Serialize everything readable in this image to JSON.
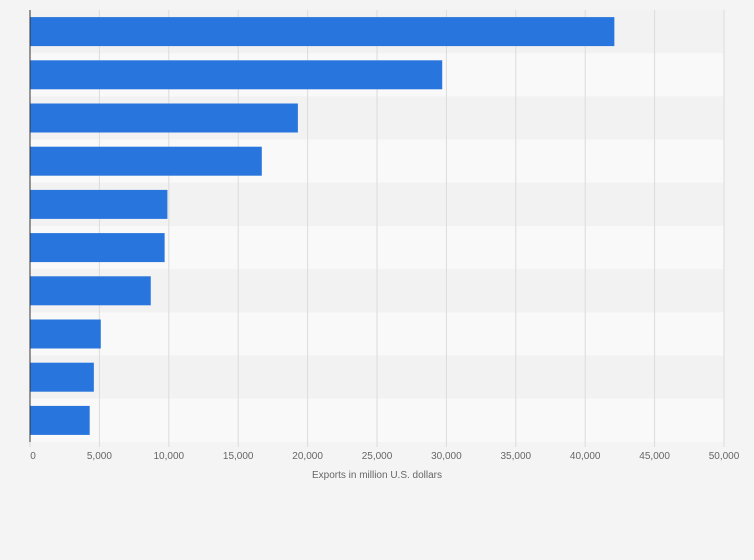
{
  "chart_data": {
    "type": "bar",
    "orientation": "horizontal",
    "title": "",
    "xlabel": "Exports in million U.S. dollars",
    "ylabel": "",
    "categories": [
      "",
      "",
      "",
      "",
      "",
      "",
      "",
      "",
      "",
      ""
    ],
    "values": [
      42100,
      29700,
      19300,
      16700,
      9900,
      9700,
      8700,
      5100,
      4600,
      4300
    ],
    "xlim": [
      0,
      50000
    ],
    "xticks": [
      "0",
      "5,000",
      "10,000",
      "15,000",
      "20,000",
      "25,000",
      "30,000",
      "35,000",
      "40,000",
      "45,000",
      "50,000"
    ],
    "xtick_values": [
      0,
      5000,
      10000,
      15000,
      20000,
      25000,
      30000,
      35000,
      40000,
      45000,
      50000
    ],
    "grid": "vertical",
    "legend": "none",
    "colors": {
      "bar": "#2876dd",
      "band_dark": "#f2f2f2",
      "band_light": "#f9f9f9",
      "background": "#f4f4f4",
      "grid": "#dcdcdc",
      "axis": "#333333",
      "text": "#666666"
    }
  }
}
